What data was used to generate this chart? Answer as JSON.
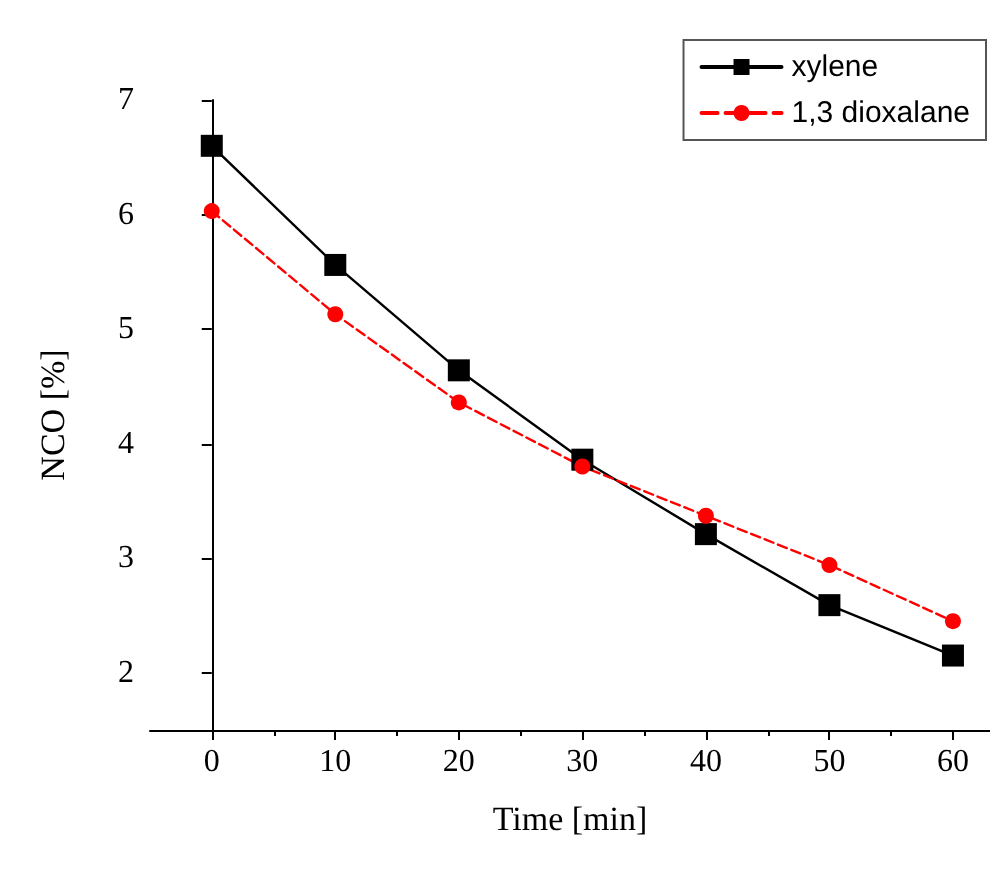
{
  "chart_data": {
    "type": "line",
    "xlabel": "Time [min]",
    "ylabel": "NCO [%]",
    "x": [
      0,
      10,
      20,
      30,
      40,
      50,
      60
    ],
    "series": [
      {
        "name": "xylene",
        "color": "#000000",
        "values": [
          6.6,
          5.56,
          4.64,
          3.86,
          3.21,
          2.59,
          2.15
        ],
        "marker": "square",
        "line_style": "solid"
      },
      {
        "name": "1,3 dioxalane",
        "color": "#ff0000",
        "values": [
          6.03,
          5.13,
          4.36,
          3.8,
          3.37,
          2.94,
          2.45
        ],
        "marker": "circle",
        "line_style": "dashed"
      }
    ],
    "xlim": [
      -5,
      63
    ],
    "xticks": [
      0,
      10,
      20,
      30,
      40,
      50,
      60
    ],
    "ylim": [
      1.5,
      7
    ],
    "yticks": [
      2,
      3,
      4,
      5,
      6,
      7
    ],
    "grid": false,
    "legend": "top right"
  }
}
